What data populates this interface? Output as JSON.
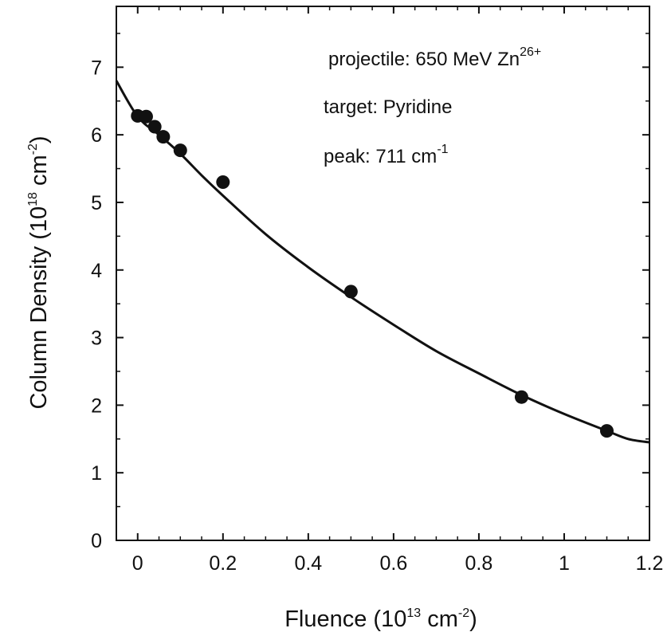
{
  "chart_data": {
    "type": "scatter",
    "xlabel": {
      "main": "Fluence (10",
      "sup1": "13",
      "mid": " cm",
      "sup2": "-2",
      "end": ")"
    },
    "ylabel": {
      "main": "Column Density (10",
      "sup1": "18",
      "mid": " cm",
      "sup2": "-2",
      "end": ")"
    },
    "xlim": [
      -0.05,
      1.2
    ],
    "ylim": [
      0,
      7.9
    ],
    "x_ticks": [
      0,
      0.2,
      0.4,
      0.6,
      0.8,
      1,
      1.2
    ],
    "x_tick_labels": [
      "0",
      "0.2",
      "0.4",
      "0.6",
      "0.8",
      "1",
      "1.2"
    ],
    "y_ticks": [
      0,
      1,
      2,
      3,
      4,
      5,
      6,
      7
    ],
    "y_tick_labels": [
      "0",
      "1",
      "2",
      "3",
      "4",
      "5",
      "6",
      "7"
    ],
    "grid": false,
    "series": [
      {
        "type": "scatter",
        "marker": "filled-circle",
        "color": "#111111",
        "x": [
          0.0,
          0.02,
          0.04,
          0.06,
          0.1,
          0.2,
          0.5,
          0.9,
          1.1
        ],
        "y": [
          6.28,
          6.27,
          6.12,
          5.97,
          5.77,
          5.3,
          3.68,
          2.12,
          1.62
        ]
      },
      {
        "type": "line",
        "color": "#111111",
        "x": [
          -0.05,
          0.0,
          0.05,
          0.1,
          0.15,
          0.2,
          0.3,
          0.4,
          0.5,
          0.6,
          0.7,
          0.8,
          0.9,
          1.0,
          1.1,
          1.15,
          1.2
        ],
        "y": [
          6.8,
          6.27,
          6.0,
          5.72,
          5.4,
          5.1,
          4.53,
          4.04,
          3.6,
          3.19,
          2.8,
          2.47,
          2.15,
          1.87,
          1.62,
          1.5,
          1.45
        ]
      }
    ],
    "annotations": [
      {
        "text": "projectile: 650 MeV Zn",
        "sup": "26+"
      },
      {
        "text": "target: Pyridine",
        "sup": ""
      },
      {
        "text": "peak: 711 cm",
        "sup": "-1"
      }
    ]
  }
}
